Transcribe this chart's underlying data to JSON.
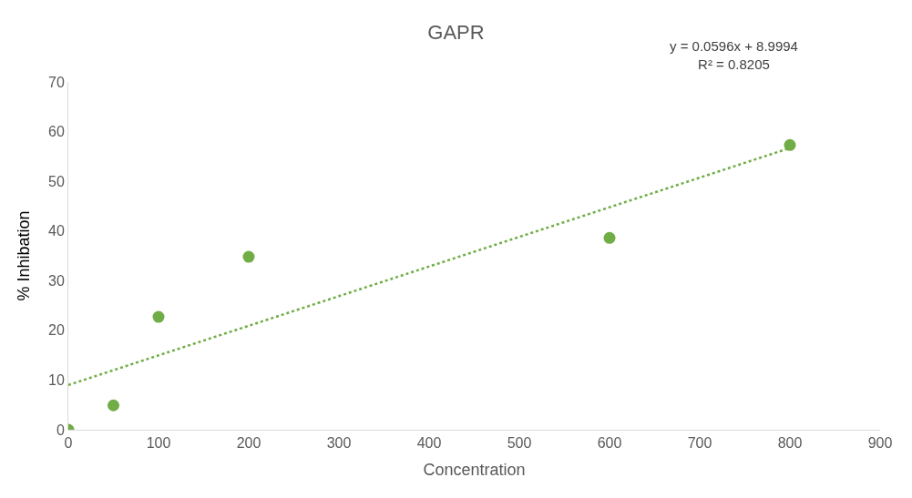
{
  "chart_data": {
    "type": "scatter",
    "title": "GAPR",
    "xlabel": "Concentration",
    "ylabel": "% Inhibation",
    "annotations": [
      "y = 0.0596x + 8.9994\nR² = 0.8205"
    ],
    "xlim": [
      0,
      900
    ],
    "xticks": [
      0,
      100,
      200,
      300,
      400,
      500,
      600,
      700,
      800,
      900
    ],
    "ylim": [
      0,
      70
    ],
    "yticks": [
      0,
      10,
      20,
      30,
      40,
      50,
      60,
      70
    ],
    "grid": false,
    "legend": false,
    "series": [
      {
        "marker": "circle",
        "color": "#70ad47",
        "x": [
          0,
          50,
          100,
          200,
          600,
          800
        ],
        "values": [
          0,
          4.9,
          22.7,
          34.8,
          38.6,
          57.3
        ]
      },
      {
        "type": "line",
        "color": "#70ad47",
        "line_style": "dotted",
        "x": [
          0,
          800
        ],
        "values": [
          9.0,
          56.7
        ]
      }
    ]
  }
}
